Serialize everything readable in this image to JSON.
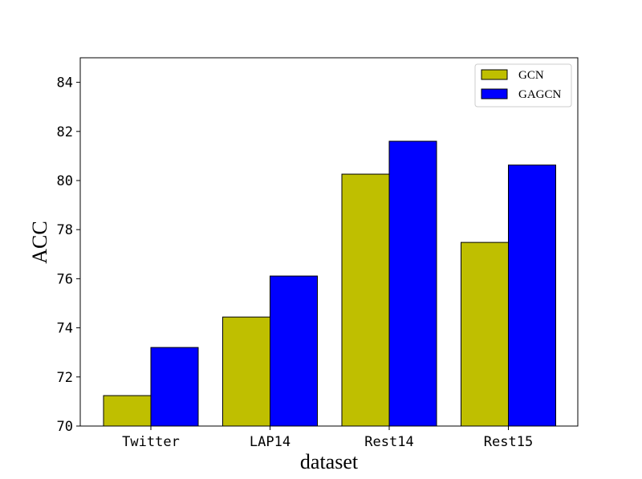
{
  "chart_data": {
    "type": "bar",
    "categories": [
      "Twitter",
      "LAP14",
      "Rest14",
      "Rest15"
    ],
    "series": [
      {
        "name": "GCN",
        "values": [
          71.24,
          74.44,
          80.26,
          77.48
        ],
        "color": "#bfbf00"
      },
      {
        "name": "GAGCN",
        "values": [
          73.2,
          76.11,
          81.6,
          80.63
        ],
        "color": "#0000ff"
      }
    ],
    "title": "",
    "xlabel": "dataset",
    "ylabel": "ACC",
    "ylim": [
      70,
      85
    ],
    "yticks": [
      70,
      72,
      74,
      76,
      78,
      80,
      82,
      84
    ],
    "grid": false,
    "legend_position": "top-right"
  }
}
